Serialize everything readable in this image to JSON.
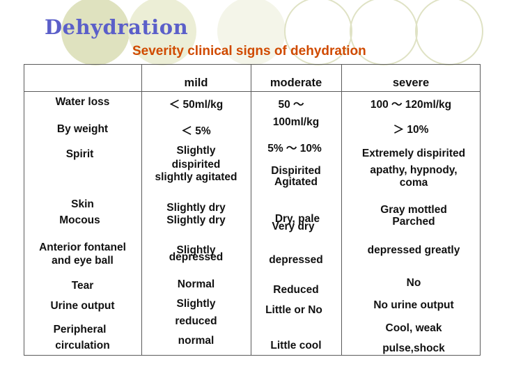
{
  "title": "Dehydration",
  "subtitle": "Severity clinical signs of dehydration",
  "columns": [
    "mild",
    "moderate",
    "severe"
  ],
  "signs": {
    "water_loss": "Water loss",
    "by_weight": "By weight",
    "spirit": "Spirit",
    "skin": "Skin",
    "mocous": "Mocous",
    "fontanel_1": "Anterior fontanel",
    "fontanel_2": "and eye ball",
    "tear": "Tear",
    "urine": "Urine output",
    "peripheral_1": "Peripheral",
    "peripheral_2": "circulation"
  },
  "mild": {
    "water_loss": "＜ 50ml/kg",
    "by_weight": "＜  5%",
    "spirit_1": "Slightly",
    "spirit_2": "dispirited",
    "spirit_3": "slightly agitated",
    "skin": "Slightly dry",
    "mocous": "Slightly dry",
    "fontanel_1": "Slightly",
    "fontanel_2": "depressed",
    "tear": "Normal",
    "urine_1": "Slightly",
    "urine_2": "reduced",
    "peripheral": "normal"
  },
  "moderate": {
    "water_loss_1": "50 ～",
    "water_loss_2": "100ml/kg",
    "by_weight": "5% ～ 10%",
    "spirit_1": "Dispirited",
    "spirit_2": "Agitated",
    "skin": "Dry, pale",
    "mocous": "Very dry",
    "fontanel": "depressed",
    "tear": "Reduced",
    "urine": "Little or No",
    "peripheral": "Little cool"
  },
  "severe": {
    "water_loss": "100 ～ 120ml/kg",
    "by_weight": "＞ 10%",
    "spirit_1": "Extremely dispirited",
    "spirit_2": "apathy, hypnody,",
    "spirit_3": "coma",
    "skin": "Gray mottled",
    "mocous": "Parched",
    "fontanel": "depressed greatly",
    "tear": "No",
    "urine": "No urine output",
    "peripheral_1": "Cool, weak",
    "peripheral_2": "pulse,shock"
  },
  "colors": {
    "title": "#5b5fc9",
    "subtitle": "#d04a00",
    "circle": "#dde0b8",
    "rule": "#5a5a5a"
  }
}
